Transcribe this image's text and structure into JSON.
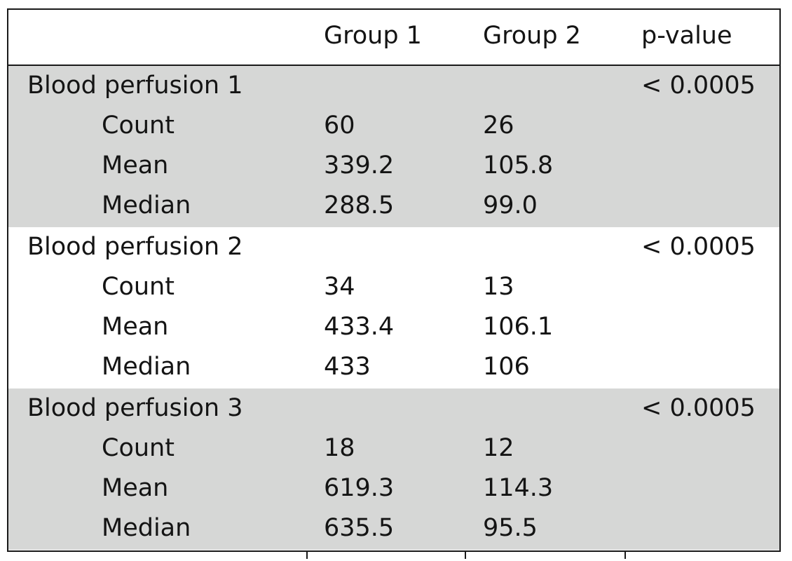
{
  "table": {
    "headers": {
      "label": "",
      "group1": "Group 1",
      "group2": "Group 2",
      "pvalue": "p-value"
    },
    "sections": [
      {
        "title": "Blood perfusion 1",
        "pvalue": "< 0.0005",
        "shaded": true,
        "rows": [
          {
            "label": "Count",
            "group1": "60",
            "group2": "26"
          },
          {
            "label": "Mean",
            "group1": "339.2",
            "group2": "105.8"
          },
          {
            "label": "Median",
            "group1": "288.5",
            "group2": "99.0"
          }
        ]
      },
      {
        "title": "Blood perfusion 2",
        "pvalue": "< 0.0005",
        "shaded": false,
        "rows": [
          {
            "label": "Count",
            "group1": "34",
            "group2": "13"
          },
          {
            "label": "Mean",
            "group1": "433.4",
            "group2": "106.1"
          },
          {
            "label": "Median",
            "group1": "433",
            "group2": "106"
          }
        ]
      },
      {
        "title": "Blood perfusion 3",
        "pvalue": "< 0.0005",
        "shaded": true,
        "rows": [
          {
            "label": "Count",
            "group1": "18",
            "group2": "12"
          },
          {
            "label": "Mean",
            "group1": "619.3",
            "group2": "114.3"
          },
          {
            "label": "Median",
            "group1": "635.5",
            "group2": "95.5"
          }
        ]
      }
    ]
  },
  "colors": {
    "shade": "#d6d7d6",
    "border": "#1a1a1a",
    "text": "#141414"
  }
}
